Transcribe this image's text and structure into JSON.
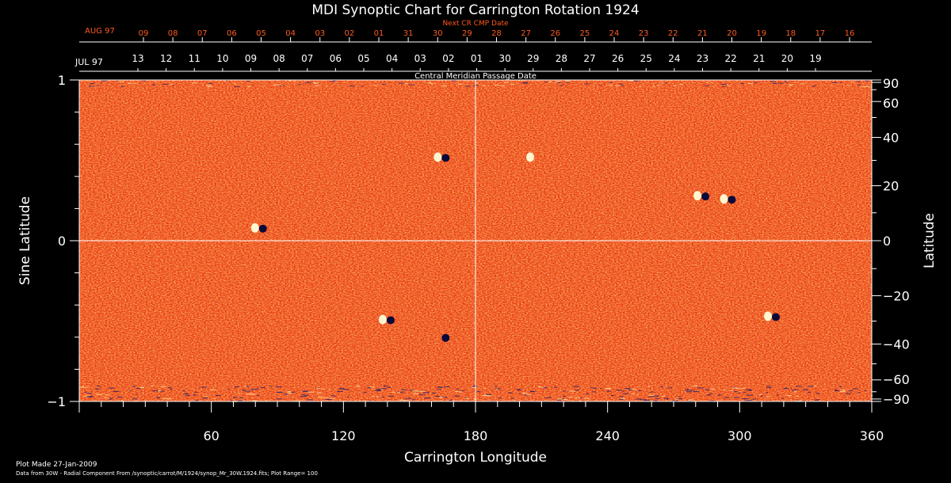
{
  "chart_data": {
    "type": "heatmap",
    "title": "MDI Synoptic Chart for Carrington Rotation 1924",
    "xlabel": "Carrington Longitude",
    "ylabel_left": "Sine Latitude",
    "ylabel_right": "Latitude",
    "xlim": [
      0,
      360
    ],
    "ylim": [
      -1,
      1
    ],
    "x_ticks": [
      60,
      120,
      180,
      240,
      300,
      360
    ],
    "y_ticks_left": [
      1,
      0,
      -1
    ],
    "y_ticks_right": [
      90,
      60,
      40,
      20,
      0,
      -20,
      -40,
      -60,
      -90
    ],
    "grid_lines": {
      "longitude": 180,
      "sine_latitude": 0
    },
    "top_axis": {
      "label": "Next CR CMP Date",
      "month_label": "AUG 97",
      "dates": [
        "09",
        "08",
        "07",
        "06",
        "05",
        "04",
        "03",
        "02",
        "01",
        "31",
        "30",
        "29",
        "28",
        "27",
        "26",
        "25",
        "24",
        "23",
        "22",
        "21",
        "20",
        "19",
        "18",
        "17",
        "16"
      ]
    },
    "second_axis": {
      "label": "Central Meridian Passage Date",
      "month_label": "JUL 97",
      "dates": [
        "13",
        "12",
        "11",
        "10",
        "09",
        "08",
        "07",
        "06",
        "05",
        "04",
        "03",
        "02",
        "01",
        "30",
        "29",
        "28",
        "27",
        "26",
        "25",
        "24",
        "23",
        "22",
        "21",
        "20",
        "19"
      ]
    },
    "colormap": {
      "low": "#1a1a6e",
      "mid": "#e83a10",
      "high": "#ffe9a0"
    },
    "plot_range": 100,
    "active_regions": [
      {
        "longitude": 82,
        "sine_latitude": 0.08,
        "polarity": "mixed"
      },
      {
        "longitude": 165,
        "sine_latitude": 0.52,
        "polarity": "mixed"
      },
      {
        "longitude": 207,
        "sine_latitude": 0.52,
        "polarity": "positive"
      },
      {
        "longitude": 283,
        "sine_latitude": 0.28,
        "polarity": "mixed"
      },
      {
        "longitude": 295,
        "sine_latitude": 0.26,
        "polarity": "mixed"
      },
      {
        "longitude": 140,
        "sine_latitude": -0.49,
        "polarity": "mixed"
      },
      {
        "longitude": 165,
        "sine_latitude": -0.6,
        "polarity": "negative"
      },
      {
        "longitude": 315,
        "sine_latitude": -0.47,
        "polarity": "mixed"
      }
    ]
  },
  "footer": {
    "line1": "Plot Made 27-Jan-2009",
    "line2": "Data from 30W - Radial Component From /synoptic/carrot/M/1924/synop_Mr_30W.1924.fits; Plot Range=  100"
  }
}
